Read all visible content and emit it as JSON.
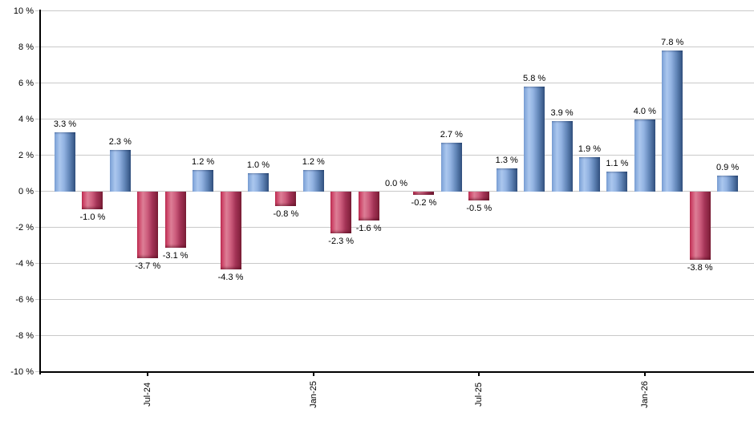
{
  "chart_data": {
    "type": "bar",
    "title": "",
    "xlabel": "",
    "ylabel": "",
    "values": [
      3.3,
      -1.0,
      2.3,
      -3.7,
      -3.1,
      1.2,
      -4.3,
      1.0,
      -0.8,
      1.2,
      -2.3,
      -1.6,
      0.0,
      -0.2,
      2.7,
      -0.5,
      1.3,
      5.8,
      3.9,
      1.9,
      1.1,
      4.0,
      7.8,
      -3.8,
      0.9
    ],
    "bar_labels": [
      "3.3 %",
      "-1.0 %",
      "2.3 %",
      "-3.7 %",
      "-3.1 %",
      "1.2 %",
      "-4.3 %",
      "1.0 %",
      "-0.8 %",
      "1.2 %",
      "-2.3 %",
      "-1.6 %",
      "0.0 %",
      "-0.2 %",
      "2.7 %",
      "-0.5 %",
      "1.3 %",
      "5.8 %",
      "3.9 %",
      "1.9 %",
      "1.1 %",
      "4.0 %",
      "7.8 %",
      "-3.8 %",
      "0.9 %"
    ],
    "y_axis": {
      "min": -10,
      "max": 10,
      "step": 2,
      "tick_labels": [
        "10 %",
        "8 %",
        "6 %",
        "4 %",
        "2 %",
        "0 %",
        "-2 %",
        "-4 %",
        "-6 %",
        "-8 %",
        "-10 %"
      ]
    },
    "x_axis": {
      "ticks": [
        {
          "label": "Jul-24",
          "bar_index": 3
        },
        {
          "label": "Jan-25",
          "bar_index": 9
        },
        {
          "label": "Jul-25",
          "bar_index": 15
        },
        {
          "label": "Jan-26",
          "bar_index": 21
        }
      ]
    },
    "legend": null,
    "grid": true,
    "colors": {
      "positive": "#7aa0d6",
      "positive_light": "#abc7ee",
      "positive_dark": "#30507e",
      "negative": "#c62e55",
      "negative_light": "#dd7e96",
      "negative_dark": "#7c1e37",
      "gridline": "#c9c9c9",
      "axis": "#000000",
      "label": "#000000",
      "background": "#ffffff"
    }
  }
}
